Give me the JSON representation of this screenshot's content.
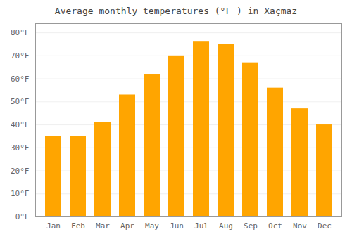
{
  "chart_data": {
    "type": "bar",
    "title": "Average monthly temperatures (°F ) in Xaçmaz",
    "categories": [
      "Jan",
      "Feb",
      "Mar",
      "Apr",
      "May",
      "Jun",
      "Jul",
      "Aug",
      "Sep",
      "Oct",
      "Nov",
      "Dec"
    ],
    "values": [
      35,
      35,
      41,
      53,
      62,
      70,
      76,
      75,
      67,
      56,
      47,
      40
    ],
    "color": "#FFA500",
    "ylim": [
      0,
      84
    ],
    "yticks": [
      {
        "value": 0,
        "label": "0°F"
      },
      {
        "value": 10,
        "label": "10°F"
      },
      {
        "value": 20,
        "label": "20°F"
      },
      {
        "value": 30,
        "label": "30°F"
      },
      {
        "value": 40,
        "label": "40°F"
      },
      {
        "value": 50,
        "label": "50°F"
      },
      {
        "value": 60,
        "label": "60°F"
      },
      {
        "value": 70,
        "label": "70°F"
      },
      {
        "value": 80,
        "label": "80°F"
      }
    ],
    "grid": true
  }
}
